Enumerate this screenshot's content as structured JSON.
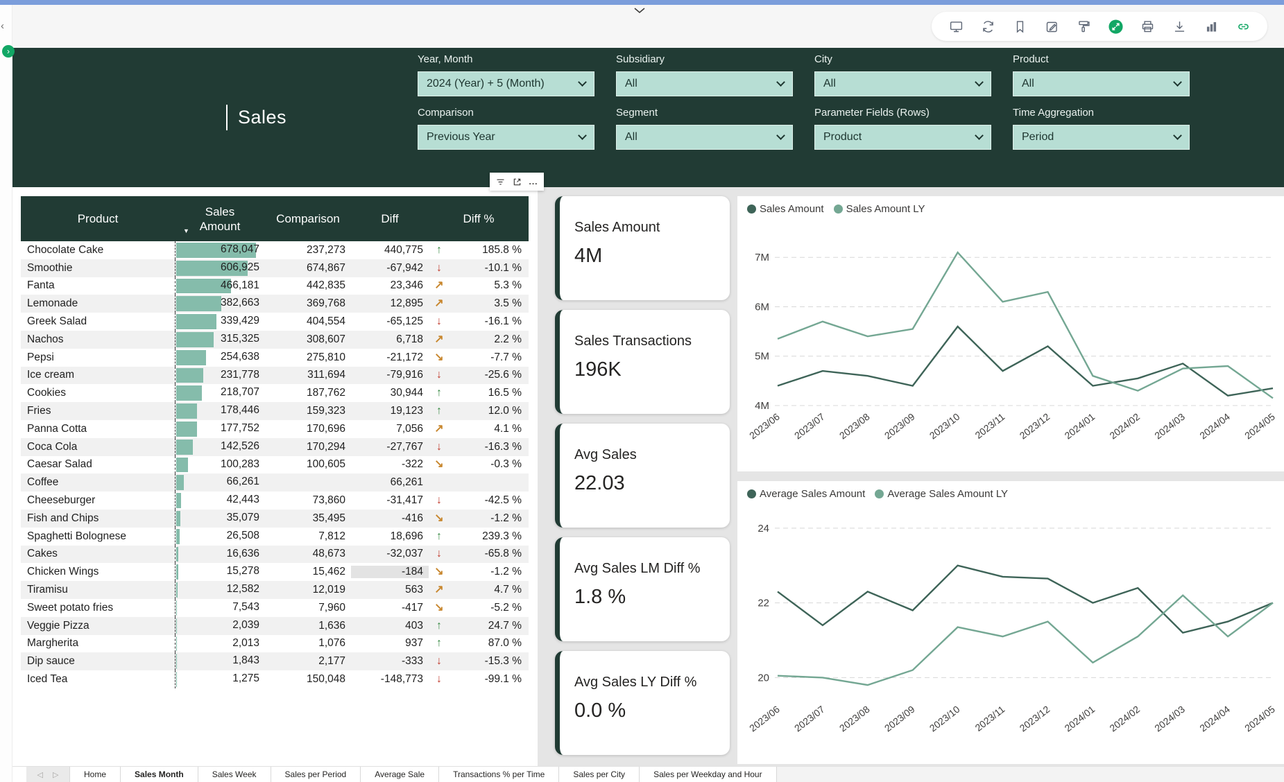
{
  "colors": {
    "header_green": "#213b34",
    "mint": "#b7ded4",
    "data_bar": "#85bcab",
    "arrow_up": "#388a44",
    "arrow_down": "#c0392b",
    "arrow_diag": "#c8872e",
    "series_dark": "#3e6458",
    "series_light": "#74a793",
    "toolbar_accent": "#12a765"
  },
  "toolbar": {
    "icons": [
      "monitor-icon",
      "refresh-icon",
      "bookmark-icon",
      "edit-icon",
      "paint-icon",
      "fullscreen-icon",
      "print-icon",
      "download-icon",
      "stats-icon",
      "link-icon"
    ]
  },
  "rail": {
    "collapse_glyph": "‹",
    "expand_glyph": "›"
  },
  "header": {
    "title": "Sales",
    "filters": [
      {
        "label": "Year, Month",
        "value": "2024 (Year) + 5 (Month)"
      },
      {
        "label": "Subsidiary",
        "value": "All"
      },
      {
        "label": "City",
        "value": "All"
      },
      {
        "label": "Product",
        "value": "All"
      },
      {
        "label": "Comparison",
        "value": "Previous Year"
      },
      {
        "label": "Segment",
        "value": "All"
      },
      {
        "label": "Parameter Fields (Rows)",
        "value": "Product"
      },
      {
        "label": "Time Aggregation",
        "value": "Period"
      }
    ]
  },
  "mini_toolbar": {
    "icons": [
      "filter-icon",
      "popout-icon",
      "more-options-icon"
    ],
    "ellipsis": "..."
  },
  "table": {
    "columns": [
      "Product",
      "Sales\nAmount",
      "Comparison",
      "Diff",
      "Diff %"
    ],
    "sort_indicator": "▼",
    "max_sales": 678047,
    "rows": [
      {
        "product": "Chocolate Cake",
        "sales": "678,047",
        "comparison": "237,273",
        "diff": "440,775",
        "trend": "up",
        "diff_pct": "185.8 %"
      },
      {
        "product": "Smoothie",
        "sales": "606,925",
        "comparison": "674,867",
        "diff": "-67,942",
        "trend": "down",
        "diff_pct": "-10.1 %"
      },
      {
        "product": "Fanta",
        "sales": "466,181",
        "comparison": "442,835",
        "diff": "23,346",
        "trend": "ur",
        "diff_pct": "5.3 %"
      },
      {
        "product": "Lemonade",
        "sales": "382,663",
        "comparison": "369,768",
        "diff": "12,895",
        "trend": "ur",
        "diff_pct": "3.5 %"
      },
      {
        "product": "Greek Salad",
        "sales": "339,429",
        "comparison": "404,554",
        "diff": "-65,125",
        "trend": "down",
        "diff_pct": "-16.1 %"
      },
      {
        "product": "Nachos",
        "sales": "315,325",
        "comparison": "308,607",
        "diff": "6,718",
        "trend": "ur",
        "diff_pct": "2.2 %"
      },
      {
        "product": "Pepsi",
        "sales": "254,638",
        "comparison": "275,810",
        "diff": "-21,172",
        "trend": "dr",
        "diff_pct": "-7.7 %"
      },
      {
        "product": "Ice cream",
        "sales": "231,778",
        "comparison": "311,694",
        "diff": "-79,916",
        "trend": "down",
        "diff_pct": "-25.6 %"
      },
      {
        "product": "Cookies",
        "sales": "218,707",
        "comparison": "187,762",
        "diff": "30,944",
        "trend": "up",
        "diff_pct": "16.5 %"
      },
      {
        "product": "Fries",
        "sales": "178,446",
        "comparison": "159,323",
        "diff": "19,123",
        "trend": "up",
        "diff_pct": "12.0 %"
      },
      {
        "product": "Panna Cotta",
        "sales": "177,752",
        "comparison": "170,696",
        "diff": "7,056",
        "trend": "ur",
        "diff_pct": "4.1 %"
      },
      {
        "product": "Coca Cola",
        "sales": "142,526",
        "comparison": "170,294",
        "diff": "-27,767",
        "trend": "down",
        "diff_pct": "-16.3 %"
      },
      {
        "product": "Caesar Salad",
        "sales": "100,283",
        "comparison": "100,605",
        "diff": "-322",
        "trend": "dr",
        "diff_pct": "-0.3 %"
      },
      {
        "product": "Coffee",
        "sales": "66,261",
        "comparison": "",
        "diff": "66,261",
        "trend": "",
        "diff_pct": ""
      },
      {
        "product": "Cheeseburger",
        "sales": "42,443",
        "comparison": "73,860",
        "diff": "-31,417",
        "trend": "down",
        "diff_pct": "-42.5 %"
      },
      {
        "product": "Fish and Chips",
        "sales": "35,079",
        "comparison": "35,495",
        "diff": "-416",
        "trend": "dr",
        "diff_pct": "-1.2 %"
      },
      {
        "product": "Spaghetti Bolognese",
        "sales": "26,508",
        "comparison": "7,812",
        "diff": "18,696",
        "trend": "up",
        "diff_pct": "239.3 %"
      },
      {
        "product": "Cakes",
        "sales": "16,636",
        "comparison": "48,673",
        "diff": "-32,037",
        "trend": "down",
        "diff_pct": "-65.8 %"
      },
      {
        "product": "Chicken Wings",
        "sales": "15,278",
        "comparison": "15,462",
        "diff": "-184",
        "trend": "dr",
        "diff_pct": "-1.2 %",
        "diff_highlight": true
      },
      {
        "product": "Tiramisu",
        "sales": "12,582",
        "comparison": "12,019",
        "diff": "563",
        "trend": "ur",
        "diff_pct": "4.7 %"
      },
      {
        "product": "Sweet potato fries",
        "sales": "7,543",
        "comparison": "7,960",
        "diff": "-417",
        "trend": "dr",
        "diff_pct": "-5.2 %"
      },
      {
        "product": "Veggie Pizza",
        "sales": "2,039",
        "comparison": "1,636",
        "diff": "403",
        "trend": "up",
        "diff_pct": "24.7 %"
      },
      {
        "product": "Margherita",
        "sales": "2,013",
        "comparison": "1,076",
        "diff": "937",
        "trend": "up",
        "diff_pct": "87.0 %"
      },
      {
        "product": "Dip sauce",
        "sales": "1,843",
        "comparison": "2,177",
        "diff": "-333",
        "trend": "down",
        "diff_pct": "-15.3 %"
      },
      {
        "product": "Iced Tea",
        "sales": "1,275",
        "comparison": "150,048",
        "diff": "-148,773",
        "trend": "down",
        "diff_pct": "-99.1 %"
      }
    ]
  },
  "kpis": [
    {
      "title": "Sales Amount",
      "value": "4M"
    },
    {
      "title": "Sales Transactions",
      "value": "196K"
    },
    {
      "title": "Avg Sales",
      "value": "22.03"
    },
    {
      "title": "Avg Sales LM Diff %",
      "value": "1.8 %"
    },
    {
      "title": "Avg Sales LY Diff %",
      "value": "0.0 %"
    }
  ],
  "chart_data": [
    {
      "type": "line",
      "title": "Sales Amount vs Sales Amount LY",
      "x": [
        "2023/06",
        "2023/07",
        "2023/08",
        "2023/09",
        "2023/10",
        "2023/11",
        "2023/12",
        "2024/01",
        "2024/02",
        "2024/03",
        "2024/04",
        "2024/05"
      ],
      "series": [
        {
          "name": "Sales Amount",
          "color": "#3e6458",
          "values": [
            4.4,
            4.7,
            4.6,
            4.4,
            5.6,
            4.7,
            5.2,
            4.4,
            4.55,
            4.85,
            4.2,
            4.35
          ]
        },
        {
          "name": "Sales Amount LY",
          "color": "#74a793",
          "values": [
            5.35,
            5.7,
            5.4,
            5.55,
            7.1,
            6.1,
            6.3,
            4.6,
            4.3,
            4.75,
            4.8,
            4.15
          ]
        }
      ],
      "unit": "M",
      "yticks": [
        4,
        5,
        6,
        7
      ],
      "ytick_labels": [
        "4M",
        "5M",
        "6M",
        "7M"
      ],
      "ylim": [
        4,
        7.55
      ],
      "grid": true,
      "legend_position": "top-left"
    },
    {
      "type": "line",
      "title": "Average Sales Amount vs Average Sales Amount LY",
      "x": [
        "2023/06",
        "2023/07",
        "2023/08",
        "2023/09",
        "2023/10",
        "2023/11",
        "2023/12",
        "2024/01",
        "2024/02",
        "2024/03",
        "2024/04",
        "2024/05"
      ],
      "series": [
        {
          "name": "Average Sales Amount",
          "color": "#3e6458",
          "values": [
            22.3,
            21.4,
            22.3,
            21.8,
            23.0,
            22.7,
            22.65,
            22.0,
            22.4,
            21.2,
            21.5,
            22.0
          ]
        },
        {
          "name": "Average Sales Amount LY",
          "color": "#74a793",
          "values": [
            20.05,
            20.0,
            19.8,
            20.2,
            21.35,
            21.1,
            21.5,
            20.4,
            21.1,
            22.2,
            21.1,
            22.0
          ]
        }
      ],
      "unit": "",
      "yticks": [
        20,
        22,
        24
      ],
      "ytick_labels": [
        "20",
        "22",
        "24"
      ],
      "ylim": [
        19.45,
        24.35
      ],
      "grid": true,
      "legend_position": "top-left"
    }
  ],
  "tabs": {
    "nav_prev": "◁",
    "nav_next": "▷",
    "items": [
      "Home",
      "Sales Month",
      "Sales Week",
      "Sales per Period",
      "Average Sale",
      "Transactions % per Time",
      "Sales per City",
      "Sales per Weekday and Hour"
    ],
    "active": "Sales Month"
  }
}
